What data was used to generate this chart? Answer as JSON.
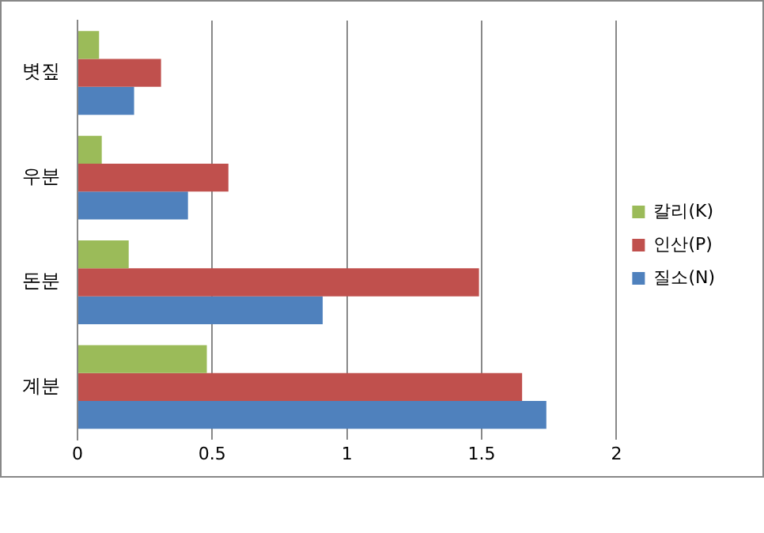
{
  "chart_data": {
    "type": "bar",
    "orientation": "horizontal",
    "categories": [
      "볏짚",
      "우분",
      "돈분",
      "계분"
    ],
    "series": [
      {
        "name": "칼리(K)",
        "color": "#9bbb59",
        "values": [
          0.08,
          0.09,
          0.19,
          0.48
        ]
      },
      {
        "name": "인산(P)",
        "color": "#c0504d",
        "values": [
          0.31,
          0.56,
          1.49,
          1.65
        ]
      },
      {
        "name": "질소(N)",
        "color": "#4f81bd",
        "values": [
          0.21,
          0.41,
          0.91,
          1.74
        ]
      }
    ],
    "xlim": [
      0,
      2
    ],
    "xticks": [
      0,
      0.5,
      1,
      1.5,
      2
    ],
    "grid": "x",
    "legend": "right"
  }
}
